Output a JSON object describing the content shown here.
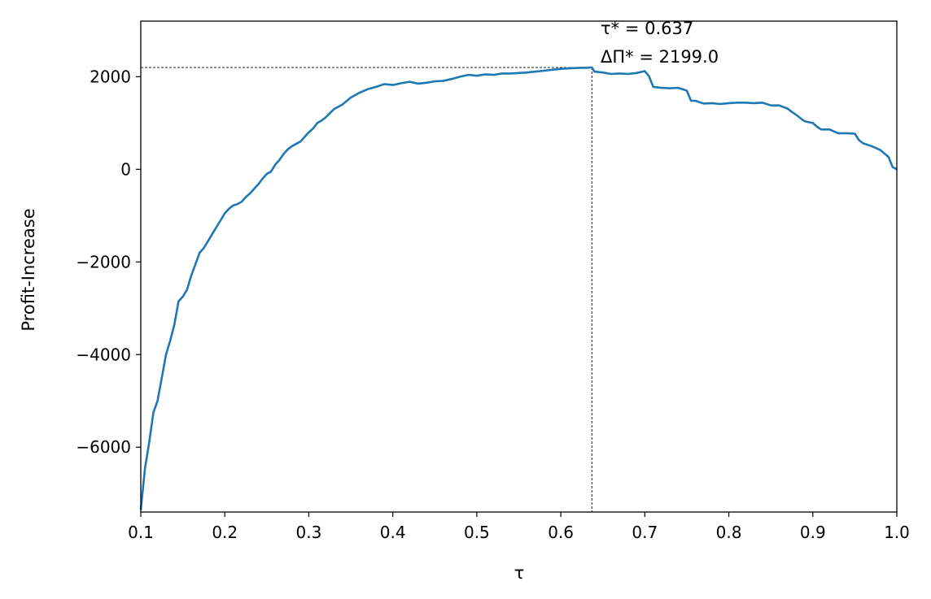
{
  "chart_data": {
    "type": "line",
    "title": "",
    "xlabel": "τ",
    "ylabel": "Profit-Increase",
    "xlim": [
      0.1,
      1.0
    ],
    "ylim": [
      -7400,
      3200
    ],
    "xticks": [
      0.1,
      0.2,
      0.3,
      0.4,
      0.5,
      0.6,
      0.7,
      0.8,
      0.9,
      1.0
    ],
    "xtick_labels": [
      "0.1",
      "0.2",
      "0.3",
      "0.4",
      "0.5",
      "0.6",
      "0.7",
      "0.8",
      "0.9",
      "1.0"
    ],
    "yticks": [
      -6000,
      -4000,
      -2000,
      0,
      2000
    ],
    "ytick_labels": [
      "−6000",
      "−4000",
      "−2000",
      "0",
      "2000"
    ],
    "grid": false,
    "legend": "none",
    "series_color": "#1f77b4",
    "series": [
      {
        "x": [
          0.1,
          0.105,
          0.11,
          0.115,
          0.12,
          0.125,
          0.13,
          0.135,
          0.14,
          0.145,
          0.15,
          0.155,
          0.16,
          0.165,
          0.17,
          0.175,
          0.18,
          0.185,
          0.19,
          0.195,
          0.2,
          0.205,
          0.21,
          0.215,
          0.22,
          0.225,
          0.23,
          0.235,
          0.24,
          0.245,
          0.25,
          0.255,
          0.26,
          0.265,
          0.27,
          0.275,
          0.28,
          0.29,
          0.3,
          0.305,
          0.31,
          0.315,
          0.32,
          0.33,
          0.34,
          0.35,
          0.36,
          0.37,
          0.38,
          0.39,
          0.4,
          0.41,
          0.42,
          0.43,
          0.44,
          0.45,
          0.46,
          0.47,
          0.48,
          0.49,
          0.5,
          0.51,
          0.52,
          0.53,
          0.54,
          0.55,
          0.56,
          0.57,
          0.58,
          0.59,
          0.6,
          0.61,
          0.62,
          0.63,
          0.637,
          0.64,
          0.65,
          0.66,
          0.67,
          0.68,
          0.69,
          0.7,
          0.705,
          0.71,
          0.72,
          0.73,
          0.74,
          0.75,
          0.755,
          0.76,
          0.77,
          0.78,
          0.79,
          0.8,
          0.81,
          0.82,
          0.83,
          0.84,
          0.85,
          0.86,
          0.87,
          0.875,
          0.88,
          0.89,
          0.9,
          0.905,
          0.91,
          0.92,
          0.93,
          0.94,
          0.95,
          0.955,
          0.96,
          0.97,
          0.98,
          0.99,
          0.995,
          1.0
        ],
        "y": [
          -7350,
          -6450,
          -5900,
          -5250,
          -5000,
          -4500,
          -4000,
          -3700,
          -3350,
          -2850,
          -2750,
          -2600,
          -2300,
          -2050,
          -1800,
          -1700,
          -1550,
          -1400,
          -1250,
          -1100,
          -950,
          -850,
          -780,
          -750,
          -700,
          -600,
          -520,
          -420,
          -320,
          -200,
          -100,
          -50,
          100,
          200,
          330,
          430,
          500,
          600,
          800,
          880,
          1000,
          1050,
          1120,
          1300,
          1400,
          1550,
          1650,
          1730,
          1780,
          1840,
          1820,
          1860,
          1890,
          1850,
          1870,
          1900,
          1910,
          1950,
          2000,
          2040,
          2020,
          2050,
          2040,
          2070,
          2070,
          2080,
          2090,
          2110,
          2130,
          2150,
          2170,
          2180,
          2190,
          2195,
          2199,
          2110,
          2090,
          2060,
          2070,
          2060,
          2080,
          2120,
          2010,
          1780,
          1760,
          1750,
          1760,
          1700,
          1480,
          1480,
          1420,
          1430,
          1410,
          1430,
          1440,
          1440,
          1430,
          1440,
          1380,
          1380,
          1310,
          1240,
          1180,
          1040,
          1000,
          920,
          860,
          860,
          780,
          780,
          770,
          630,
          560,
          500,
          420,
          270,
          50,
          0
        ]
      }
    ],
    "optimum": {
      "tau": 0.637,
      "value": 2199.0,
      "label_tau": "τ* = 0.637",
      "label_value": "ΔΠ* = 2199.0"
    }
  }
}
